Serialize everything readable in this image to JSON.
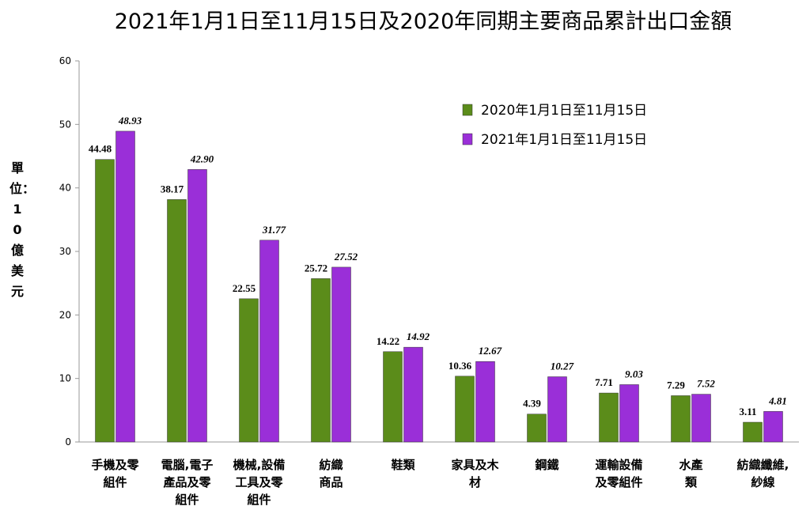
{
  "chart_data": {
    "type": "bar",
    "title": "2021年1月1日至11月15日及2020年同期主要商品累計出口金額",
    "y_label": "單位：10億美元",
    "categories": [
      "手機及零\n組件",
      "電腦,電子\n產品及零\n組件",
      "機械,設備\n工具及零\n組件",
      "紡織\n商品",
      "鞋類",
      "家具及木\n材",
      "鋼鐵",
      "運輸設備\n及零組件",
      "水產\n類",
      "紡織纖維,\n紗線"
    ],
    "series": [
      {
        "name": "2020年1月1日至11月15日",
        "color": "#5b8c1a",
        "values": [
          44.48,
          38.17,
          22.55,
          25.72,
          14.22,
          10.36,
          4.39,
          7.71,
          7.29,
          3.11
        ],
        "value_labels": [
          "44.48",
          "38.17",
          "22.55",
          "25.72",
          "14.22",
          "10.36",
          "4.39",
          "7.71",
          "7.29",
          "3.11"
        ]
      },
      {
        "name": "2021年1月1日至11月15日",
        "color": "#9a2fd8",
        "values": [
          48.93,
          42.9,
          31.77,
          27.52,
          14.92,
          12.67,
          10.27,
          9.03,
          7.52,
          4.81
        ],
        "value_labels": [
          "48.93",
          "42.90",
          "31.77",
          "27.52",
          "14.92",
          "12.67",
          "10.27",
          "9.03",
          "7.52",
          "4.81"
        ]
      }
    ],
    "ylim": [
      0,
      60
    ],
    "yticks": [
      0,
      10,
      20,
      30,
      40,
      50,
      60
    ],
    "legend": "upper-right"
  }
}
